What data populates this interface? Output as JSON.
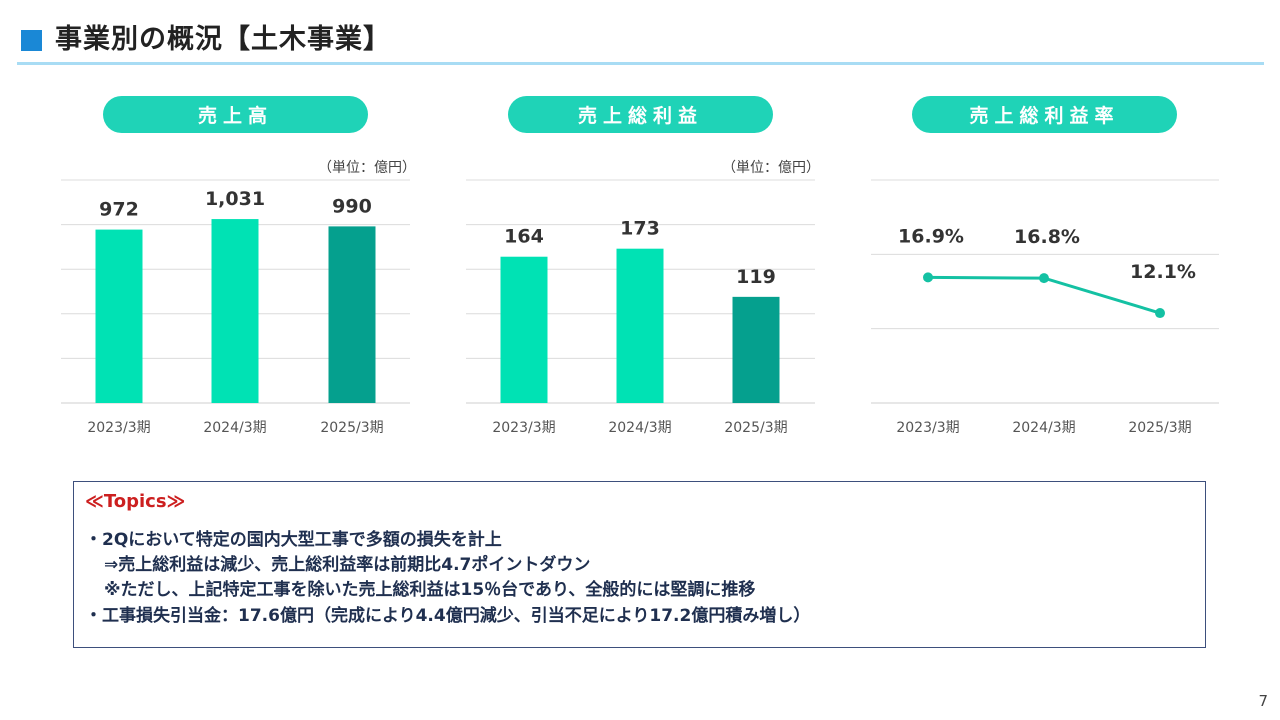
{
  "header": {
    "title": "事業別の概況【土木事業】"
  },
  "panels": [
    {
      "label": "売上高",
      "unit": "（単位：億円）"
    },
    {
      "label": "売上総利益",
      "unit": "（単位：億円）"
    },
    {
      "label": "売上総利益率",
      "unit": ""
    }
  ],
  "chart_data": [
    {
      "type": "bar",
      "title": "売上高",
      "categories": [
        "2023/3期",
        "2024/3期",
        "2025/3期"
      ],
      "values": [
        972,
        1031,
        990
      ],
      "value_labels": [
        "972",
        "1,031",
        "990"
      ],
      "ylim": [
        0,
        1250
      ],
      "grid": true,
      "colors": [
        "#00e2b4",
        "#00e2b4",
        "#05a08e"
      ]
    },
    {
      "type": "bar",
      "title": "売上総利益",
      "categories": [
        "2023/3期",
        "2024/3期",
        "2025/3期"
      ],
      "values": [
        164,
        173,
        119
      ],
      "value_labels": [
        "164",
        "173",
        "119"
      ],
      "ylim": [
        0,
        250
      ],
      "grid": true,
      "colors": [
        "#00e2b4",
        "#00e2b4",
        "#05a08e"
      ]
    },
    {
      "type": "line",
      "title": "売上総利益率",
      "categories": [
        "2023/3期",
        "2024/3期",
        "2025/3期"
      ],
      "values": [
        16.9,
        16.8,
        12.1
      ],
      "value_labels": [
        "16.9%",
        "16.8%",
        "12.1%"
      ],
      "ylim": [
        0,
        30
      ],
      "grid": true,
      "colors": [
        "#14c1a3"
      ]
    }
  ],
  "topics": {
    "heading": "≪Topics≫",
    "lines": [
      "・2Qにおいて特定の国内大型工事で多額の損失を計上",
      "⇒売上総利益は減少、売上総利益率は前期比4.7ポイントダウン",
      "※ただし、上記特定工事を除いた売上総利益は15％台であり、全般的には堅調に推移",
      "・工事損失引当金：17.6億円（完成により4.4億円減少、引当不足により17.2億円積み増し）"
    ]
  },
  "page_number": "7"
}
